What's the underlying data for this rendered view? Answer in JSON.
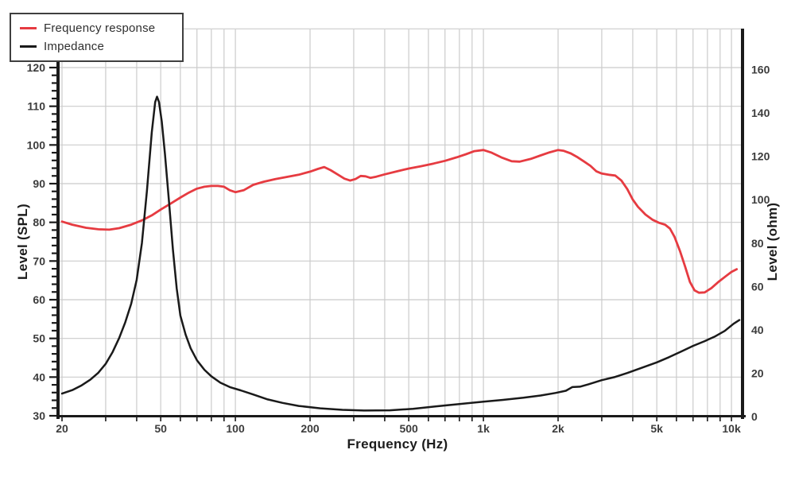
{
  "legend": {
    "items": [
      {
        "label": "Frequency response",
        "color": "#e63b41"
      },
      {
        "label": "Impedance",
        "color": "#1a1a1a"
      }
    ]
  },
  "colors": {
    "grid": "#cbcbcb",
    "axis": "#1a1a1a",
    "tick_text": "#3c3c3c",
    "frequency_response": "#e63b41",
    "impedance": "#1a1a1a"
  },
  "chart_data": {
    "type": "line",
    "title": "",
    "x_axis": {
      "label": "Frequency (Hz)",
      "scale": "log",
      "min": 20,
      "max": 10760,
      "major_ticks": [
        {
          "f": 20,
          "label": "20"
        },
        {
          "f": 50,
          "label": "50"
        },
        {
          "f": 100,
          "label": "100"
        },
        {
          "f": 200,
          "label": "200"
        },
        {
          "f": 500,
          "label": "500"
        },
        {
          "f": 1000,
          "label": "1k"
        },
        {
          "f": 2000,
          "label": "2k"
        },
        {
          "f": 5000,
          "label": "5k"
        },
        {
          "f": 10000,
          "label": "10k"
        }
      ],
      "gridlines": [
        20,
        30,
        40,
        50,
        60,
        70,
        80,
        90,
        100,
        200,
        300,
        400,
        500,
        600,
        700,
        800,
        900,
        1000,
        2000,
        3000,
        4000,
        5000,
        6000,
        7000,
        8000,
        9000,
        10000
      ]
    },
    "y_left": {
      "label": "Level (SPL)",
      "unit": "dB SPL",
      "min": 30,
      "max": 130,
      "tick_labels": [
        120,
        110,
        100,
        90,
        80,
        70,
        60,
        50,
        40,
        30
      ],
      "gridlines": [
        130,
        120,
        110,
        100,
        90,
        80,
        70,
        60,
        50,
        40
      ],
      "minor_tick_step": 2
    },
    "y_right": {
      "label": "Level (ohm)",
      "unit": "ohm",
      "min": 0,
      "max": 178,
      "tick_labels": [
        160,
        140,
        120,
        100,
        80,
        60,
        40,
        20,
        0
      ]
    },
    "legend_position": "top-left",
    "grid": true,
    "series": [
      {
        "name": "Frequency response",
        "axis": "left",
        "color": "#e63b41",
        "points": [
          [
            20,
            80.2
          ],
          [
            22,
            79.4
          ],
          [
            25,
            78.6
          ],
          [
            28,
            78.2
          ],
          [
            31,
            78.1
          ],
          [
            34,
            78.5
          ],
          [
            38,
            79.4
          ],
          [
            42,
            80.5
          ],
          [
            46,
            81.8
          ],
          [
            50,
            83.3
          ],
          [
            55,
            84.9
          ],
          [
            60,
            86.4
          ],
          [
            65,
            87.7
          ],
          [
            70,
            88.7
          ],
          [
            75,
            89.2
          ],
          [
            80,
            89.4
          ],
          [
            85,
            89.4
          ],
          [
            90,
            89.2
          ],
          [
            95,
            88.3
          ],
          [
            100,
            87.8
          ],
          [
            108,
            88.3
          ],
          [
            118,
            89.7
          ],
          [
            130,
            90.5
          ],
          [
            145,
            91.2
          ],
          [
            160,
            91.7
          ],
          [
            180,
            92.3
          ],
          [
            200,
            93.1
          ],
          [
            215,
            93.8
          ],
          [
            228,
            94.3
          ],
          [
            242,
            93.5
          ],
          [
            258,
            92.4
          ],
          [
            275,
            91.3
          ],
          [
            290,
            90.8
          ],
          [
            305,
            91.2
          ],
          [
            320,
            92.0
          ],
          [
            335,
            91.9
          ],
          [
            350,
            91.5
          ],
          [
            370,
            91.8
          ],
          [
            400,
            92.4
          ],
          [
            450,
            93.2
          ],
          [
            500,
            93.9
          ],
          [
            560,
            94.5
          ],
          [
            630,
            95.2
          ],
          [
            700,
            95.9
          ],
          [
            780,
            96.8
          ],
          [
            850,
            97.6
          ],
          [
            920,
            98.4
          ],
          [
            1000,
            98.7
          ],
          [
            1080,
            98.0
          ],
          [
            1180,
            96.8
          ],
          [
            1300,
            95.8
          ],
          [
            1400,
            95.7
          ],
          [
            1550,
            96.4
          ],
          [
            1700,
            97.3
          ],
          [
            1850,
            98.1
          ],
          [
            2000,
            98.7
          ],
          [
            2100,
            98.5
          ],
          [
            2250,
            97.8
          ],
          [
            2400,
            96.8
          ],
          [
            2550,
            95.7
          ],
          [
            2700,
            94.6
          ],
          [
            2850,
            93.2
          ],
          [
            3000,
            92.6
          ],
          [
            3200,
            92.3
          ],
          [
            3400,
            92.1
          ],
          [
            3600,
            90.8
          ],
          [
            3800,
            88.6
          ],
          [
            4000,
            85.9
          ],
          [
            4200,
            84.0
          ],
          [
            4500,
            82.0
          ],
          [
            4800,
            80.7
          ],
          [
            5100,
            79.9
          ],
          [
            5400,
            79.4
          ],
          [
            5650,
            78.4
          ],
          [
            5900,
            76.2
          ],
          [
            6200,
            72.6
          ],
          [
            6500,
            68.6
          ],
          [
            6800,
            64.6
          ],
          [
            7100,
            62.4
          ],
          [
            7400,
            61.8
          ],
          [
            7800,
            61.9
          ],
          [
            8300,
            63.0
          ],
          [
            8900,
            64.7
          ],
          [
            9500,
            66.1
          ],
          [
            10000,
            67.2
          ],
          [
            10500,
            67.9
          ]
        ]
      },
      {
        "name": "Impedance",
        "axis": "right",
        "color": "#1a1a1a",
        "points": [
          [
            20,
            10.6
          ],
          [
            22,
            12.2
          ],
          [
            24,
            14.4
          ],
          [
            26,
            17.0
          ],
          [
            28,
            20.2
          ],
          [
            30,
            24.3
          ],
          [
            32,
            29.8
          ],
          [
            34,
            36.2
          ],
          [
            36,
            43.5
          ],
          [
            38,
            52.0
          ],
          [
            40,
            63.0
          ],
          [
            42,
            80.0
          ],
          [
            44,
            104.0
          ],
          [
            46,
            131.0
          ],
          [
            47.5,
            145.0
          ],
          [
            48.3,
            147.5
          ],
          [
            49.2,
            145.0
          ],
          [
            50.5,
            136.0
          ],
          [
            52,
            121.0
          ],
          [
            54,
            99.0
          ],
          [
            56,
            77.0
          ],
          [
            58,
            59.0
          ],
          [
            60,
            46.5
          ],
          [
            63,
            37.8
          ],
          [
            66,
            31.5
          ],
          [
            70,
            26.0
          ],
          [
            75,
            21.6
          ],
          [
            80,
            18.6
          ],
          [
            87,
            15.6
          ],
          [
            95,
            13.6
          ],
          [
            105,
            12.1
          ],
          [
            118,
            10.2
          ],
          [
            135,
            7.9
          ],
          [
            155,
            6.3
          ],
          [
            180,
            4.9
          ],
          [
            220,
            3.8
          ],
          [
            270,
            3.1
          ],
          [
            330,
            2.8
          ],
          [
            420,
            2.9
          ],
          [
            520,
            3.6
          ],
          [
            640,
            4.7
          ],
          [
            800,
            5.8
          ],
          [
            1000,
            6.9
          ],
          [
            1200,
            7.7
          ],
          [
            1450,
            8.7
          ],
          [
            1700,
            9.7
          ],
          [
            1950,
            10.9
          ],
          [
            2150,
            11.9
          ],
          [
            2280,
            13.6
          ],
          [
            2450,
            13.8
          ],
          [
            2650,
            14.9
          ],
          [
            3000,
            16.8
          ],
          [
            3400,
            18.3
          ],
          [
            3800,
            20.1
          ],
          [
            4300,
            22.3
          ],
          [
            5000,
            25.0
          ],
          [
            5600,
            27.4
          ],
          [
            6300,
            30.1
          ],
          [
            7000,
            32.6
          ],
          [
            7800,
            34.8
          ],
          [
            8600,
            37.0
          ],
          [
            9400,
            39.5
          ],
          [
            10200,
            42.8
          ],
          [
            10760,
            44.5
          ]
        ]
      }
    ]
  }
}
